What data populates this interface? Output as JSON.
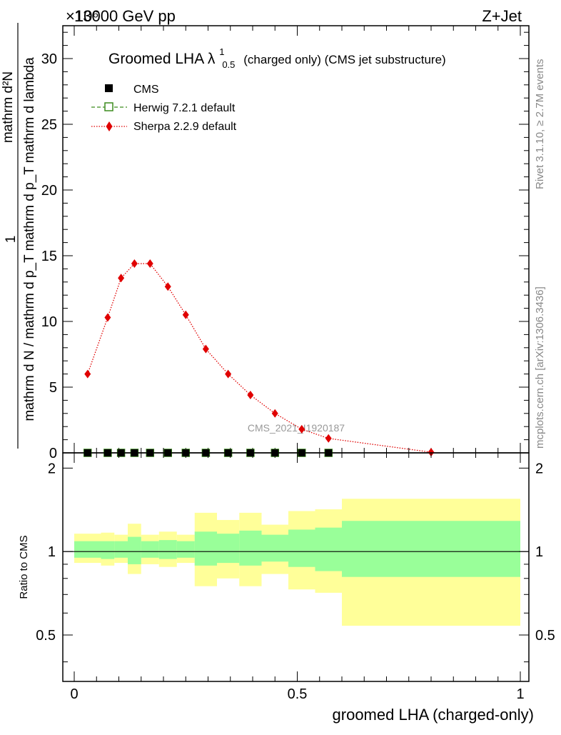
{
  "header": {
    "energy_label": "13000 GeV pp",
    "process_label": "Z+Jet",
    "exponent_label": "×10⁶"
  },
  "side_text": {
    "rivet": "Rivet 3.1.10, ≥ 2.7M events",
    "mcplots": "mcplots.cern.ch [arXiv:1306.3436]"
  },
  "watermark": "CMS_2021_I1920187",
  "chart_data": [
    {
      "type": "scatter",
      "title": "Groomed LHA λ",
      "title_superscript": "1",
      "title_subscript": "0.5",
      "title_suffix": "(charged only) (CMS jet substructure)",
      "ylabel_line1": "1",
      "ylabel_line2": "mathrm d N / mathrm d p_T mathrm d p_T mathrm d lambda",
      "ylabel_numerator": "mathrm d²N",
      "xlim": [
        0,
        1
      ],
      "ylim": [
        0,
        32.5
      ],
      "y_multiplier": 1000000,
      "yticks": [
        0,
        5,
        10,
        15,
        20,
        25,
        30
      ],
      "legend_position": "top-left",
      "series": [
        {
          "name": "CMS",
          "style": "black-square",
          "color": "#000000",
          "x": [
            0.03,
            0.075,
            0.105,
            0.135,
            0.17,
            0.21,
            0.25,
            0.295,
            0.345,
            0.395,
            0.45,
            0.51,
            0.57
          ],
          "y": [
            0,
            0,
            0,
            0,
            0,
            0,
            0,
            0,
            0,
            0,
            0,
            0,
            0
          ]
        },
        {
          "name": "Herwig 7.2.1 default",
          "style": "open-green-square-dashed",
          "color": "#3c8c1e",
          "x": [
            0.03,
            0.075,
            0.105,
            0.135,
            0.17,
            0.21,
            0.25,
            0.295,
            0.345,
            0.395,
            0.45,
            0.51,
            0.57
          ],
          "y": [
            0,
            0,
            0,
            0,
            0,
            0,
            0,
            0,
            0,
            0,
            0,
            0,
            0
          ]
        },
        {
          "name": "Sherpa 2.2.9 default",
          "style": "red-diamond-dotted",
          "color": "#e00000",
          "x": [
            0.03,
            0.075,
            0.105,
            0.135,
            0.17,
            0.21,
            0.25,
            0.295,
            0.345,
            0.395,
            0.45,
            0.51,
            0.57,
            0.8
          ],
          "y": [
            6.0,
            10.3,
            13.3,
            14.4,
            14.4,
            12.65,
            10.5,
            7.9,
            6.0,
            4.4,
            3.0,
            1.8,
            1.1,
            0.05
          ]
        }
      ]
    },
    {
      "type": "area",
      "ylabel": "Ratio to CMS",
      "xlabel": "groomed LHA (charged-only)",
      "xlim": [
        0,
        1
      ],
      "ylim": [
        0.34,
        2.27
      ],
      "yticks": [
        0.5,
        1,
        2
      ],
      "xticks": [
        0,
        0.5,
        1
      ],
      "bins": [
        {
          "lo": 0.0,
          "hi": 0.06,
          "inner": [
            0.95,
            1.09
          ],
          "outer": [
            0.91,
            1.16
          ]
        },
        {
          "lo": 0.06,
          "hi": 0.09,
          "inner": [
            0.94,
            1.09
          ],
          "outer": [
            0.89,
            1.17
          ]
        },
        {
          "lo": 0.09,
          "hi": 0.12,
          "inner": [
            0.95,
            1.09
          ],
          "outer": [
            0.91,
            1.15
          ]
        },
        {
          "lo": 0.12,
          "hi": 0.15,
          "inner": [
            0.9,
            1.13
          ],
          "outer": [
            0.83,
            1.26
          ]
        },
        {
          "lo": 0.15,
          "hi": 0.19,
          "inner": [
            0.95,
            1.09
          ],
          "outer": [
            0.9,
            1.15
          ]
        },
        {
          "lo": 0.19,
          "hi": 0.23,
          "inner": [
            0.94,
            1.1
          ],
          "outer": [
            0.88,
            1.18
          ]
        },
        {
          "lo": 0.23,
          "hi": 0.27,
          "inner": [
            0.95,
            1.09
          ],
          "outer": [
            0.91,
            1.15
          ]
        },
        {
          "lo": 0.27,
          "hi": 0.32,
          "inner": [
            0.89,
            1.18
          ],
          "outer": [
            0.75,
            1.38
          ]
        },
        {
          "lo": 0.32,
          "hi": 0.37,
          "inner": [
            0.91,
            1.16
          ],
          "outer": [
            0.8,
            1.3
          ]
        },
        {
          "lo": 0.37,
          "hi": 0.42,
          "inner": [
            0.89,
            1.19
          ],
          "outer": [
            0.75,
            1.38
          ]
        },
        {
          "lo": 0.42,
          "hi": 0.48,
          "inner": [
            0.92,
            1.15
          ],
          "outer": [
            0.83,
            1.25
          ]
        },
        {
          "lo": 0.48,
          "hi": 0.54,
          "inner": [
            0.88,
            1.2
          ],
          "outer": [
            0.73,
            1.4
          ]
        },
        {
          "lo": 0.54,
          "hi": 0.6,
          "inner": [
            0.85,
            1.22
          ],
          "outer": [
            0.71,
            1.42
          ]
        },
        {
          "lo": 0.6,
          "hi": 1.0,
          "inner": [
            0.81,
            1.29
          ],
          "outer": [
            0.54,
            1.55
          ]
        }
      ],
      "reference_line": 1
    }
  ],
  "colors": {
    "inner_band": "#99ff99",
    "outer_band": "#ffff99"
  }
}
